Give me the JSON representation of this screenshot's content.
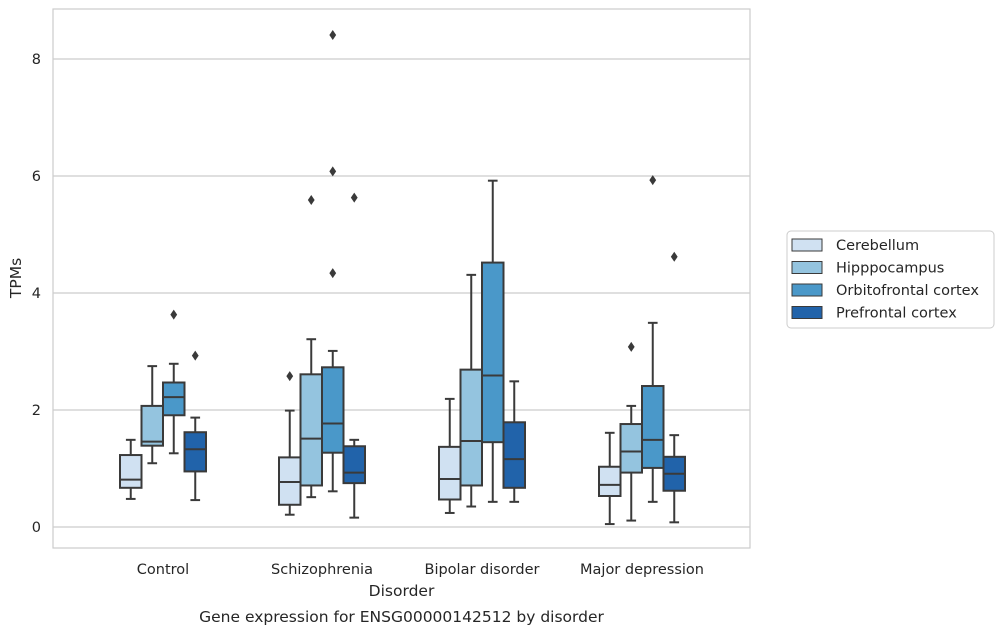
{
  "chart_data": {
    "type": "box",
    "caption": "Gene expression for ENSG00000142512 by disorder",
    "xlabel": "Disorder",
    "ylabel": "TPMs",
    "ylim": [
      -0.35,
      8.85
    ],
    "yticks": [
      0,
      2,
      4,
      6,
      8
    ],
    "grid": "horizontal",
    "legend_position": "right",
    "categories": [
      "Control",
      "Schizophrenia",
      "Bipolar disorder",
      "Major depression"
    ],
    "series": [
      {
        "name": "Cerebellum",
        "color": "#d0e1f2",
        "boxes": [
          {
            "whisker_low": 0.48,
            "q1": 0.67,
            "median": 0.81,
            "q3": 1.23,
            "whisker_high": 1.49,
            "outliers": []
          },
          {
            "whisker_low": 0.21,
            "q1": 0.38,
            "median": 0.77,
            "q3": 1.19,
            "whisker_high": 1.99,
            "outliers": [
              2.58
            ]
          },
          {
            "whisker_low": 0.24,
            "q1": 0.47,
            "median": 0.82,
            "q3": 1.37,
            "whisker_high": 2.19,
            "outliers": []
          },
          {
            "whisker_low": 0.05,
            "q1": 0.53,
            "median": 0.72,
            "q3": 1.03,
            "whisker_high": 1.61,
            "outliers": []
          }
        ]
      },
      {
        "name": "Hipppocampus",
        "color": "#94c4df",
        "boxes": [
          {
            "whisker_low": 1.09,
            "q1": 1.39,
            "median": 1.46,
            "q3": 2.07,
            "whisker_high": 2.75,
            "outliers": []
          },
          {
            "whisker_low": 0.51,
            "q1": 0.71,
            "median": 1.51,
            "q3": 2.61,
            "whisker_high": 3.21,
            "outliers": [
              5.59
            ]
          },
          {
            "whisker_low": 0.35,
            "q1": 0.71,
            "median": 1.47,
            "q3": 2.69,
            "whisker_high": 4.31,
            "outliers": []
          },
          {
            "whisker_low": 0.11,
            "q1": 0.93,
            "median": 1.29,
            "q3": 1.76,
            "whisker_high": 2.07,
            "outliers": [
              3.08
            ]
          }
        ]
      },
      {
        "name": "Orbitofrontal cortex",
        "color": "#4a98c9",
        "boxes": [
          {
            "whisker_low": 1.26,
            "q1": 1.91,
            "median": 2.22,
            "q3": 2.47,
            "whisker_high": 2.79,
            "outliers": [
              3.63
            ]
          },
          {
            "whisker_low": 0.61,
            "q1": 1.27,
            "median": 1.77,
            "q3": 2.73,
            "whisker_high": 3.01,
            "outliers": [
              8.41,
              6.08,
              4.34
            ]
          },
          {
            "whisker_low": 0.43,
            "q1": 1.45,
            "median": 2.59,
            "q3": 4.52,
            "whisker_high": 5.92,
            "outliers": []
          },
          {
            "whisker_low": 0.43,
            "q1": 1.01,
            "median": 1.49,
            "q3": 2.41,
            "whisker_high": 3.49,
            "outliers": [
              5.93
            ]
          }
        ]
      },
      {
        "name": "Prefrontal cortex",
        "color": "#2163aa",
        "boxes": [
          {
            "whisker_low": 0.46,
            "q1": 0.95,
            "median": 1.33,
            "q3": 1.62,
            "whisker_high": 1.87,
            "outliers": [
              2.93
            ]
          },
          {
            "whisker_low": 0.16,
            "q1": 0.75,
            "median": 0.93,
            "q3": 1.38,
            "whisker_high": 1.49,
            "outliers": [
              5.63
            ]
          },
          {
            "whisker_low": 0.43,
            "q1": 0.67,
            "median": 1.16,
            "q3": 1.79,
            "whisker_high": 2.49,
            "outliers": []
          },
          {
            "whisker_low": 0.08,
            "q1": 0.62,
            "median": 0.91,
            "q3": 1.2,
            "whisker_high": 1.57,
            "outliers": [
              4.62
            ]
          }
        ]
      }
    ]
  }
}
